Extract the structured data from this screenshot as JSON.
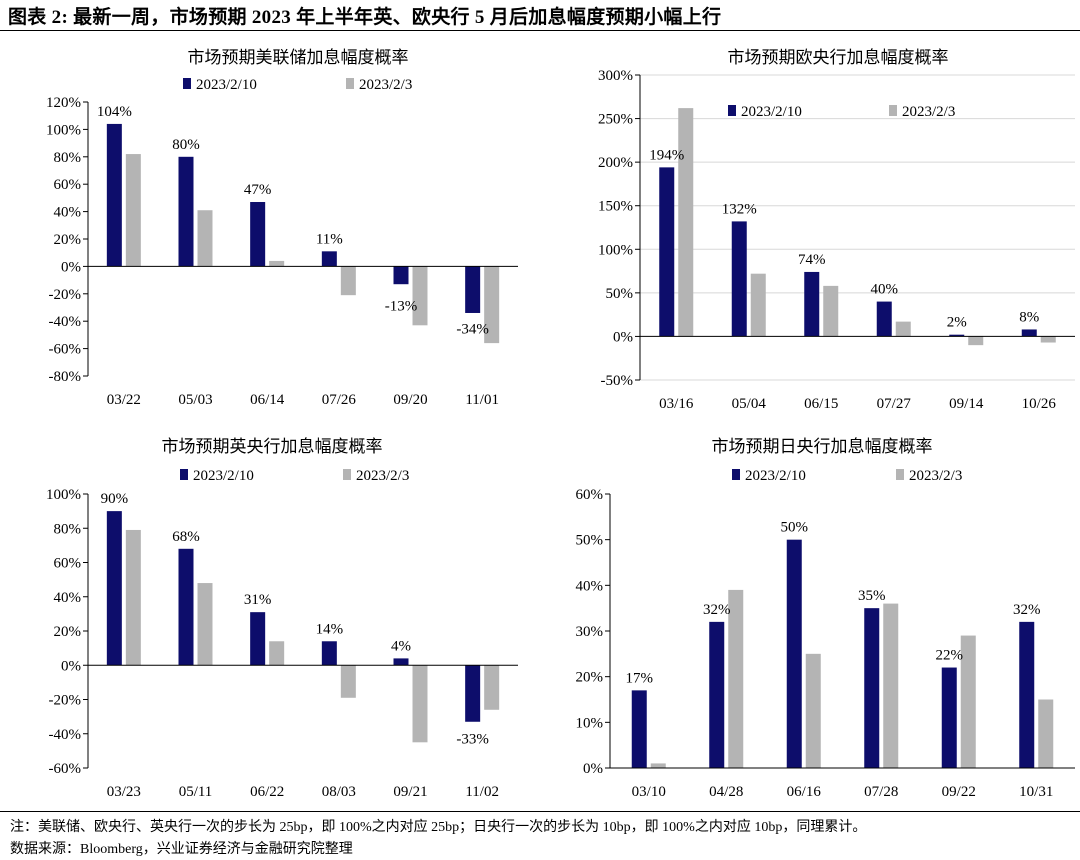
{
  "figure_title": "图表 2:  最新一周，市场预期 2023 年上半年英、欧央行 5 月后加息幅度预期小幅上行",
  "note": "注：美联储、欧央行、英央行一次的步长为 25bp，即 100%之内对应 25bp；日央行一次的步长为 10bp，即 100%之内对应 10bp，同理累计。",
  "source": "数据来源：Bloomberg，兴业证券经济与金融研究院整理",
  "colors": {
    "series_1": "#0d0d6b",
    "series_2": "#b4b4b4",
    "axis": "#000000",
    "grid": "#d8d8d8"
  },
  "chart_data": [
    {
      "type": "bar",
      "title": "市场预期美联储加息幅度概率",
      "categories": [
        "03/22",
        "05/03",
        "06/14",
        "07/26",
        "09/20",
        "11/01"
      ],
      "series": [
        {
          "name": "2023/2/10",
          "values": [
            104,
            80,
            47,
            11,
            -13,
            -34
          ]
        },
        {
          "name": "2023/2/3",
          "values": [
            82,
            41,
            4,
            -21,
            -43,
            -56
          ]
        }
      ],
      "data_labels": [
        "104%",
        "80%",
        "47%",
        "11%",
        "-13%",
        "-34%"
      ],
      "yticks": [
        120,
        100,
        80,
        60,
        40,
        20,
        0,
        -20,
        -40,
        -60,
        -80
      ],
      "ylim": [
        -80,
        120
      ],
      "legend": "top",
      "grid": false
    },
    {
      "type": "bar",
      "title": "市场预期欧央行加息幅度概率",
      "categories": [
        "03/16",
        "05/04",
        "06/15",
        "07/27",
        "09/14",
        "10/26"
      ],
      "series": [
        {
          "name": "2023/2/10",
          "values": [
            194,
            132,
            74,
            40,
            2,
            8
          ]
        },
        {
          "name": "2023/2/3",
          "values": [
            262,
            72,
            58,
            17,
            -10,
            -7
          ]
        }
      ],
      "data_labels": [
        "194%",
        "132%",
        "74%",
        "40%",
        "2%",
        "8%"
      ],
      "yticks": [
        300,
        250,
        200,
        150,
        100,
        50,
        0,
        -50
      ],
      "ylim": [
        -50,
        300
      ],
      "legend": "top",
      "grid": true
    },
    {
      "type": "bar",
      "title": "市场预期英央行加息幅度概率",
      "categories": [
        "03/23",
        "05/11",
        "06/22",
        "08/03",
        "09/21",
        "11/02"
      ],
      "series": [
        {
          "name": "2023/2/10",
          "values": [
            90,
            68,
            31,
            14,
            4,
            -33
          ]
        },
        {
          "name": "2023/2/3",
          "values": [
            79,
            48,
            14,
            -19,
            -45,
            -26
          ]
        }
      ],
      "data_labels": [
        "90%",
        "68%",
        "31%",
        "14%",
        "4%",
        "-33%"
      ],
      "yticks": [
        100,
        80,
        60,
        40,
        20,
        0,
        -20,
        -40,
        -60
      ],
      "ylim": [
        -60,
        100
      ],
      "legend": "top",
      "grid": false
    },
    {
      "type": "bar",
      "title": "市场预期日央行加息幅度概率",
      "categories": [
        "03/10",
        "04/28",
        "06/16",
        "07/28",
        "09/22",
        "10/31"
      ],
      "series": [
        {
          "name": "2023/2/10",
          "values": [
            17,
            32,
            50,
            35,
            22,
            32
          ]
        },
        {
          "name": "2023/2/3",
          "values": [
            1,
            39,
            25,
            36,
            29,
            15
          ]
        }
      ],
      "data_labels": [
        "17%",
        "32%",
        "50%",
        "35%",
        "22%",
        "32%"
      ],
      "yticks": [
        60,
        50,
        40,
        30,
        20,
        10,
        0
      ],
      "ylim": [
        0,
        60
      ],
      "legend": "top",
      "grid": false
    }
  ]
}
